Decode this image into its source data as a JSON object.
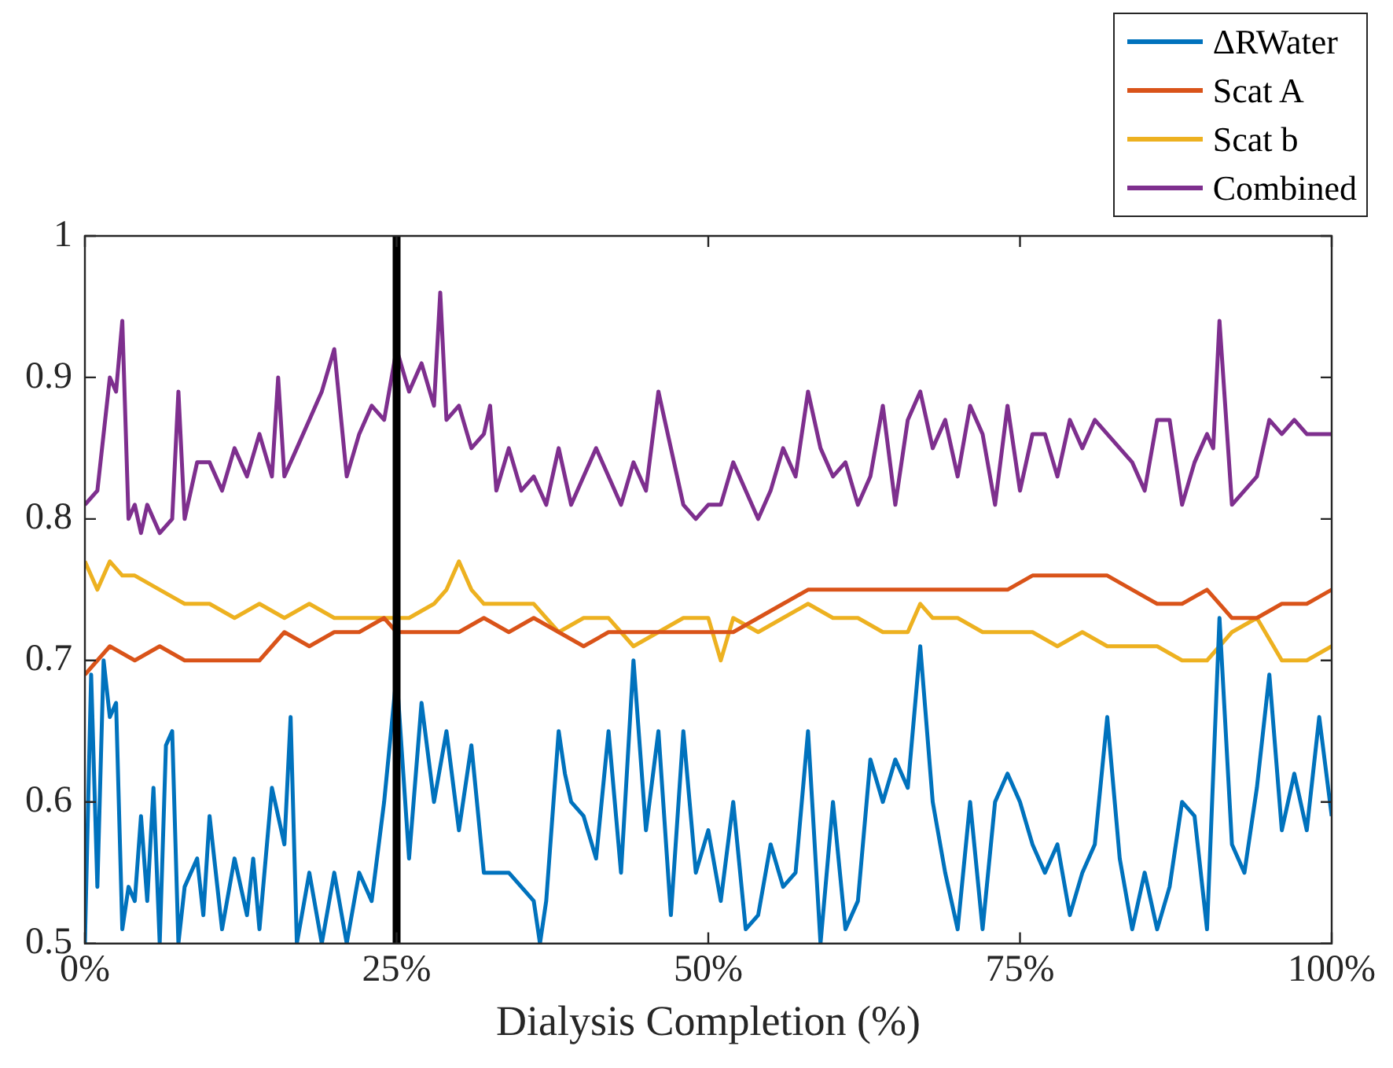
{
  "chart_data": {
    "type": "line",
    "xlabel": "Dialysis Completion (%)",
    "xlim": [
      0,
      100
    ],
    "xticks": [
      {
        "value": 0,
        "label": "0%"
      },
      {
        "value": 25,
        "label": "25%"
      },
      {
        "value": 50,
        "label": "50%"
      },
      {
        "value": 75,
        "label": "75%"
      },
      {
        "value": 100,
        "label": "100%"
      }
    ],
    "ylim": [
      0.5,
      1
    ],
    "yticks": [
      0.5,
      0.6,
      0.7,
      0.8,
      0.9,
      1
    ],
    "grid": false,
    "legend": "top right",
    "marker": "none",
    "line_style": "solid",
    "ref_lines": [
      {
        "axis": "x",
        "value": 25,
        "color": "#000000"
      }
    ],
    "series": [
      {
        "name": "ΔRWater",
        "color": "#0072bd",
        "x": [
          0,
          0.5,
          1,
          1.5,
          2,
          2.5,
          3,
          3.5,
          4,
          4.5,
          5,
          5.5,
          6,
          6.5,
          7,
          7.5,
          8,
          9,
          9.5,
          10,
          11,
          12,
          13,
          13.5,
          14,
          15,
          16,
          16.5,
          17,
          18,
          19,
          20,
          21,
          22,
          23,
          24,
          25,
          26,
          27,
          28,
          29,
          30,
          31,
          32,
          34,
          36,
          36.5,
          37,
          38,
          38.5,
          39,
          40,
          41,
          42,
          43,
          44,
          45,
          46,
          47,
          48,
          49,
          50,
          51,
          52,
          53,
          54,
          55,
          56,
          57,
          58,
          59,
          60,
          61,
          62,
          63,
          64,
          65,
          66,
          67,
          68,
          69,
          70,
          71,
          72,
          73,
          74,
          75,
          76,
          77,
          78,
          79,
          80,
          81,
          82,
          83,
          84,
          85,
          86,
          87,
          88,
          89,
          90,
          91,
          92,
          93,
          94,
          95,
          96,
          97,
          98,
          99,
          100
        ],
        "values": [
          0.5,
          0.69,
          0.54,
          0.7,
          0.66,
          0.67,
          0.51,
          0.54,
          0.53,
          0.59,
          0.53,
          0.61,
          0.5,
          0.64,
          0.65,
          0.5,
          0.54,
          0.56,
          0.52,
          0.59,
          0.51,
          0.56,
          0.52,
          0.56,
          0.51,
          0.61,
          0.57,
          0.66,
          0.5,
          0.55,
          0.5,
          0.55,
          0.5,
          0.55,
          0.53,
          0.6,
          0.69,
          0.56,
          0.67,
          0.6,
          0.65,
          0.58,
          0.64,
          0.55,
          0.55,
          0.53,
          0.5,
          0.53,
          0.65,
          0.62,
          0.6,
          0.59,
          0.56,
          0.65,
          0.55,
          0.7,
          0.58,
          0.65,
          0.52,
          0.65,
          0.55,
          0.58,
          0.53,
          0.6,
          0.51,
          0.52,
          0.57,
          0.54,
          0.55,
          0.65,
          0.5,
          0.6,
          0.51,
          0.53,
          0.63,
          0.6,
          0.63,
          0.61,
          0.71,
          0.6,
          0.55,
          0.51,
          0.6,
          0.51,
          0.6,
          0.62,
          0.6,
          0.57,
          0.55,
          0.57,
          0.52,
          0.55,
          0.57,
          0.66,
          0.56,
          0.51,
          0.55,
          0.51,
          0.54,
          0.6,
          0.59,
          0.51,
          0.73,
          0.57,
          0.55,
          0.61,
          0.69,
          0.58,
          0.62,
          0.58,
          0.66,
          0.59
        ]
      },
      {
        "name": "Scat A",
        "color": "#d95319",
        "x": [
          0,
          2,
          4,
          6,
          8,
          10,
          12,
          14,
          16,
          18,
          20,
          22,
          24,
          25,
          28,
          30,
          32,
          34,
          36,
          38,
          40,
          42,
          44,
          46,
          48,
          50,
          52,
          54,
          56,
          58,
          60,
          62,
          64,
          66,
          68,
          70,
          72,
          74,
          76,
          78,
          80,
          82,
          84,
          86,
          88,
          90,
          92,
          94,
          96,
          98,
          100
        ],
        "values": [
          0.69,
          0.71,
          0.7,
          0.71,
          0.7,
          0.7,
          0.7,
          0.7,
          0.72,
          0.71,
          0.72,
          0.72,
          0.73,
          0.72,
          0.72,
          0.72,
          0.73,
          0.72,
          0.73,
          0.72,
          0.71,
          0.72,
          0.72,
          0.72,
          0.72,
          0.72,
          0.72,
          0.73,
          0.74,
          0.75,
          0.75,
          0.75,
          0.75,
          0.75,
          0.75,
          0.75,
          0.75,
          0.75,
          0.76,
          0.76,
          0.76,
          0.76,
          0.75,
          0.74,
          0.74,
          0.75,
          0.73,
          0.73,
          0.74,
          0.74,
          0.75
        ]
      },
      {
        "name": "Scat b",
        "color": "#edb120",
        "x": [
          0,
          1,
          2,
          3,
          4,
          6,
          8,
          10,
          12,
          14,
          16,
          18,
          20,
          22,
          24,
          26,
          28,
          29,
          30,
          31,
          32,
          34,
          36,
          38,
          40,
          42,
          44,
          46,
          48,
          50,
          51,
          52,
          54,
          56,
          58,
          60,
          62,
          64,
          66,
          67,
          68,
          70,
          72,
          74,
          76,
          78,
          80,
          82,
          84,
          86,
          88,
          90,
          92,
          94,
          96,
          98,
          100
        ],
        "values": [
          0.77,
          0.75,
          0.77,
          0.76,
          0.76,
          0.75,
          0.74,
          0.74,
          0.73,
          0.74,
          0.73,
          0.74,
          0.73,
          0.73,
          0.73,
          0.73,
          0.74,
          0.75,
          0.77,
          0.75,
          0.74,
          0.74,
          0.74,
          0.72,
          0.73,
          0.73,
          0.71,
          0.72,
          0.73,
          0.73,
          0.7,
          0.73,
          0.72,
          0.73,
          0.74,
          0.73,
          0.73,
          0.72,
          0.72,
          0.74,
          0.73,
          0.73,
          0.72,
          0.72,
          0.72,
          0.71,
          0.72,
          0.71,
          0.71,
          0.71,
          0.7,
          0.7,
          0.72,
          0.73,
          0.7,
          0.7,
          0.71
        ]
      },
      {
        "name": "Combined",
        "color": "#7e2f8e",
        "x": [
          0,
          1,
          2,
          2.5,
          3,
          3.5,
          4,
          4.5,
          5,
          6,
          7,
          7.5,
          8,
          9,
          10,
          11,
          12,
          13,
          14,
          15,
          15.5,
          16,
          17,
          18,
          19,
          20,
          21,
          22,
          23,
          24,
          25,
          26,
          27,
          28,
          28.5,
          29,
          30,
          31,
          32,
          32.5,
          33,
          34,
          35,
          36,
          37,
          38,
          39,
          40,
          41,
          42,
          43,
          44,
          45,
          46,
          47,
          48,
          49,
          50,
          51,
          52,
          53,
          54,
          55,
          56,
          57,
          58,
          59,
          60,
          61,
          62,
          63,
          64,
          65,
          66,
          67,
          68,
          69,
          70,
          71,
          72,
          73,
          74,
          75,
          76,
          77,
          78,
          79,
          80,
          81,
          82,
          83,
          84,
          85,
          86,
          87,
          88,
          89,
          90,
          90.5,
          91,
          92,
          93,
          94,
          95,
          96,
          97,
          98,
          99,
          100
        ],
        "values": [
          0.81,
          0.82,
          0.9,
          0.89,
          0.94,
          0.8,
          0.81,
          0.79,
          0.81,
          0.79,
          0.8,
          0.89,
          0.8,
          0.84,
          0.84,
          0.82,
          0.85,
          0.83,
          0.86,
          0.83,
          0.9,
          0.83,
          0.85,
          0.87,
          0.89,
          0.92,
          0.83,
          0.86,
          0.88,
          0.87,
          0.92,
          0.89,
          0.91,
          0.88,
          0.96,
          0.87,
          0.88,
          0.85,
          0.86,
          0.88,
          0.82,
          0.85,
          0.82,
          0.83,
          0.81,
          0.85,
          0.81,
          0.83,
          0.85,
          0.83,
          0.81,
          0.84,
          0.82,
          0.89,
          0.85,
          0.81,
          0.8,
          0.81,
          0.81,
          0.84,
          0.82,
          0.8,
          0.82,
          0.85,
          0.83,
          0.89,
          0.85,
          0.83,
          0.84,
          0.81,
          0.83,
          0.88,
          0.81,
          0.87,
          0.89,
          0.85,
          0.87,
          0.83,
          0.88,
          0.86,
          0.81,
          0.88,
          0.82,
          0.86,
          0.86,
          0.83,
          0.87,
          0.85,
          0.87,
          0.86,
          0.85,
          0.84,
          0.82,
          0.87,
          0.87,
          0.81,
          0.84,
          0.86,
          0.85,
          0.94,
          0.81,
          0.82,
          0.83,
          0.87,
          0.86,
          0.87,
          0.86,
          0.86,
          0.86
        ]
      }
    ]
  }
}
